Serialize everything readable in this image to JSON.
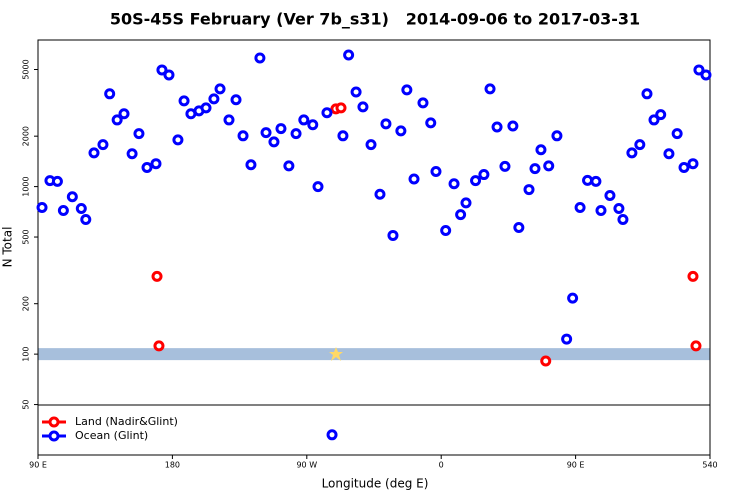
{
  "chart_data": {
    "type": "scatter",
    "title": "50S-45S February (Ver 7b_s31)   2014-09-06 to 2017-03-31",
    "x_label": "Longitude (deg E)",
    "y_label": "N Total",
    "log_y": true,
    "xlim": [
      90,
      540
    ],
    "ylim": [
      25,
      7500
    ],
    "xticks": [
      {
        "value": 90,
        "label": "90 E"
      },
      180,
      {
        "value": 270,
        "label": "90 W"
      },
      {
        "value": 360,
        "label": "0"
      },
      {
        "value": 450,
        "label": "90 E"
      },
      540
    ],
    "yticks": [
      50,
      100,
      200,
      500,
      1000,
      2000,
      5000
    ],
    "hline": 100,
    "hline_color": "#a7bfdc",
    "legend": "bottom-left",
    "series": [
      {
        "name": "Land (Nadir&Glint)",
        "color": "#ff0000",
        "x": [
          169.7,
          171,
          289.5,
          292.9,
          430,
          528.6,
          530.6
        ],
        "values": [
          291,
          112,
          2910,
          2950,
          91,
          291,
          112
        ]
      },
      {
        "name": "Ocean (Glint)",
        "color": "#0000ff",
        "x": [
          92.7,
          98,
          103,
          107,
          113,
          119,
          122,
          127.5,
          133.5,
          138,
          143,
          147.6,
          153,
          157.6,
          163,
          169,
          173,
          177.7,
          183.7,
          187.8,
          192.4,
          197.8,
          202.5,
          207.8,
          211.9,
          217.9,
          222.6,
          227.3,
          232.6,
          238.6,
          242.7,
          248,
          252.7,
          258,
          262.8,
          268,
          274,
          277.5,
          283.5,
          294.2,
          298,
          303,
          307.6,
          313,
          319,
          323,
          327.7,
          333,
          337,
          341.8,
          347.8,
          353,
          356.5,
          363,
          368.6,
          373,
          376.6,
          383,
          388.6,
          392.7,
          397.4,
          402.7,
          408,
          412,
          418.8,
          422.8,
          426.8,
          432,
          437.5,
          444,
          448,
          453,
          458,
          463.6,
          467,
          473,
          479,
          481.7,
          487.7,
          493,
          497.8,
          502.5,
          507,
          512.5,
          518,
          522.6,
          528.6,
          532.6,
          537.3,
          286.9
        ],
        "values": [
          750,
          1086,
          1075,
          720,
          870,
          740,
          636,
          1590,
          1780,
          3580,
          2500,
          2720,
          1570,
          2070,
          1300,
          1370,
          4970,
          4640,
          1900,
          3250,
          2720,
          2830,
          2950,
          3340,
          3830,
          2500,
          3300,
          2010,
          1350,
          5860,
          2100,
          1850,
          2220,
          1330,
          2070,
          2500,
          2340,
          1000,
          2760,
          2010,
          6100,
          3670,
          2990,
          1780,
          900,
          2370,
          511,
          2150,
          3780,
          1110,
          3160,
          2400,
          1230,
          547,
          1040,
          680,
          800,
          1086,
          1180,
          3830,
          2270,
          1320,
          2300,
          570,
          960,
          1280,
          1660,
          1330,
          2010,
          123,
          216,
          750,
          1090,
          1075,
          720,
          885,
          740,
          636,
          1590,
          1780,
          3580,
          2500,
          2690,
          1570,
          2070,
          1300,
          1370,
          4970,
          4640,
          33
        ]
      }
    ]
  }
}
